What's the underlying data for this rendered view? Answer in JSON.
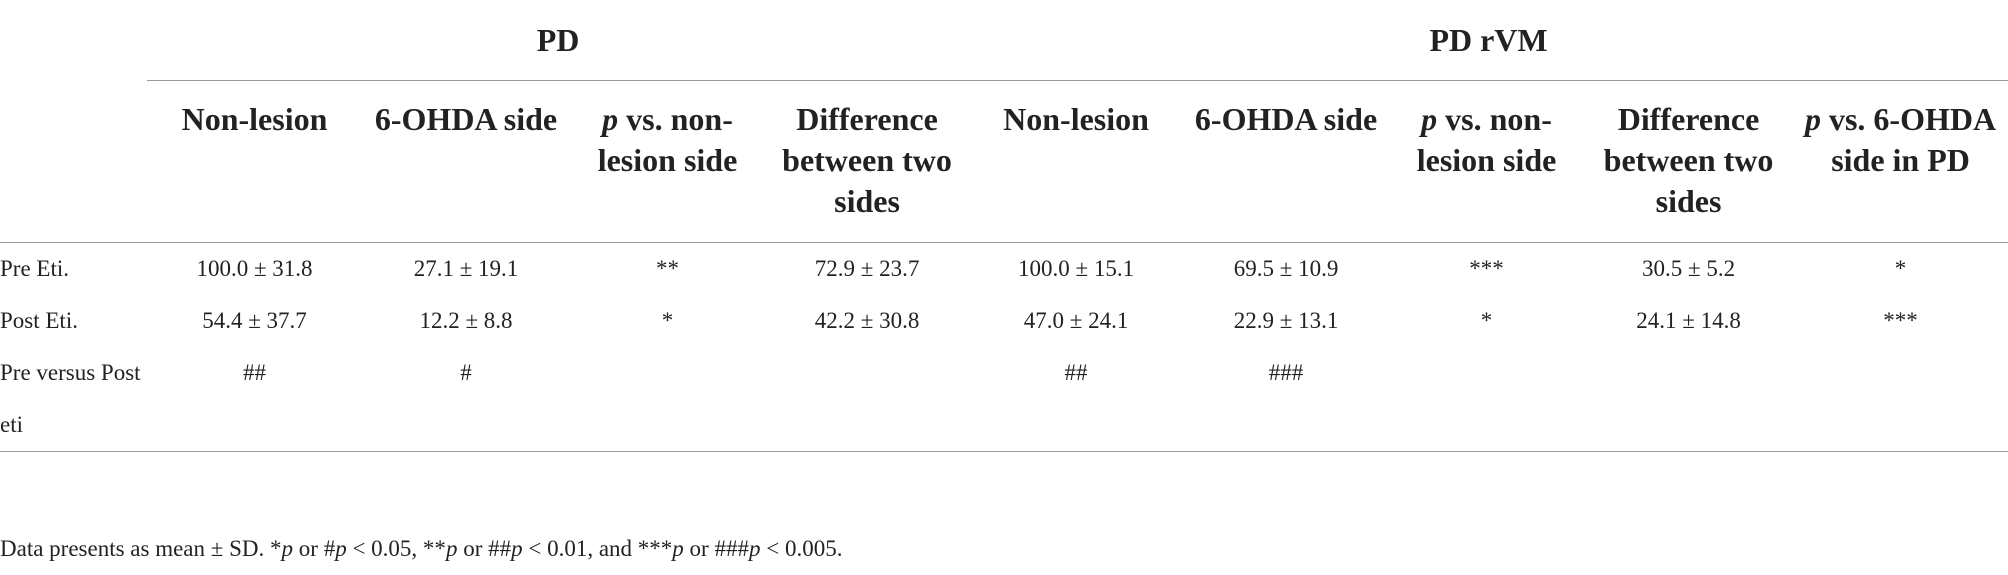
{
  "table": {
    "groups": [
      {
        "label": "PD",
        "columns": [
          [
            {
              "text": "Non-lesion"
            }
          ],
          [
            {
              "text": "6-OHDA side"
            }
          ],
          [
            {
              "text": "p",
              "italic": true
            },
            {
              "text": " vs. non-lesion side"
            }
          ],
          [
            {
              "text": "Difference between two sides"
            }
          ]
        ]
      },
      {
        "label": "PD rVM",
        "columns": [
          [
            {
              "text": "Non-lesion"
            }
          ],
          [
            {
              "text": "6-OHDA side"
            }
          ],
          [
            {
              "text": "p",
              "italic": true
            },
            {
              "text": " vs. non-lesion side"
            }
          ],
          [
            {
              "text": "Difference between two sides"
            }
          ],
          [
            {
              "text": "p",
              "italic": true
            },
            {
              "text": " vs. 6-OHDA side in PD"
            }
          ]
        ]
      }
    ],
    "rows": [
      {
        "label": "Pre Eti.",
        "cells": [
          "100.0 ± 31.8",
          "27.1 ± 19.1",
          "**",
          "72.9 ± 23.7",
          "100.0 ± 15.1",
          "69.5 ± 10.9",
          "***",
          "30.5 ± 5.2",
          "*"
        ]
      },
      {
        "label": "Post Eti.",
        "cells": [
          "54.4 ± 37.7",
          "12.2 ± 8.8",
          "*",
          "42.2 ± 30.8",
          "47.0 ± 24.1",
          "22.9 ± 13.1",
          "*",
          "24.1 ± 14.8",
          "***"
        ]
      },
      {
        "label": "Pre versus Post eti",
        "cells": [
          "##",
          "#",
          null,
          null,
          "##",
          "###",
          null,
          null,
          null
        ]
      }
    ],
    "footnote": [
      {
        "text": "Data presents as mean ± SD. *"
      },
      {
        "text": "p",
        "italic": true
      },
      {
        "text": " or #"
      },
      {
        "text": "p",
        "italic": true
      },
      {
        "text": " < 0.05, **"
      },
      {
        "text": "p",
        "italic": true
      },
      {
        "text": " or ##"
      },
      {
        "text": "p",
        "italic": true
      },
      {
        "text": " < 0.01, and ***"
      },
      {
        "text": "p",
        "italic": true
      },
      {
        "text": " or ###"
      },
      {
        "text": "p",
        "italic": true
      },
      {
        "text": " < 0.005."
      }
    ]
  }
}
